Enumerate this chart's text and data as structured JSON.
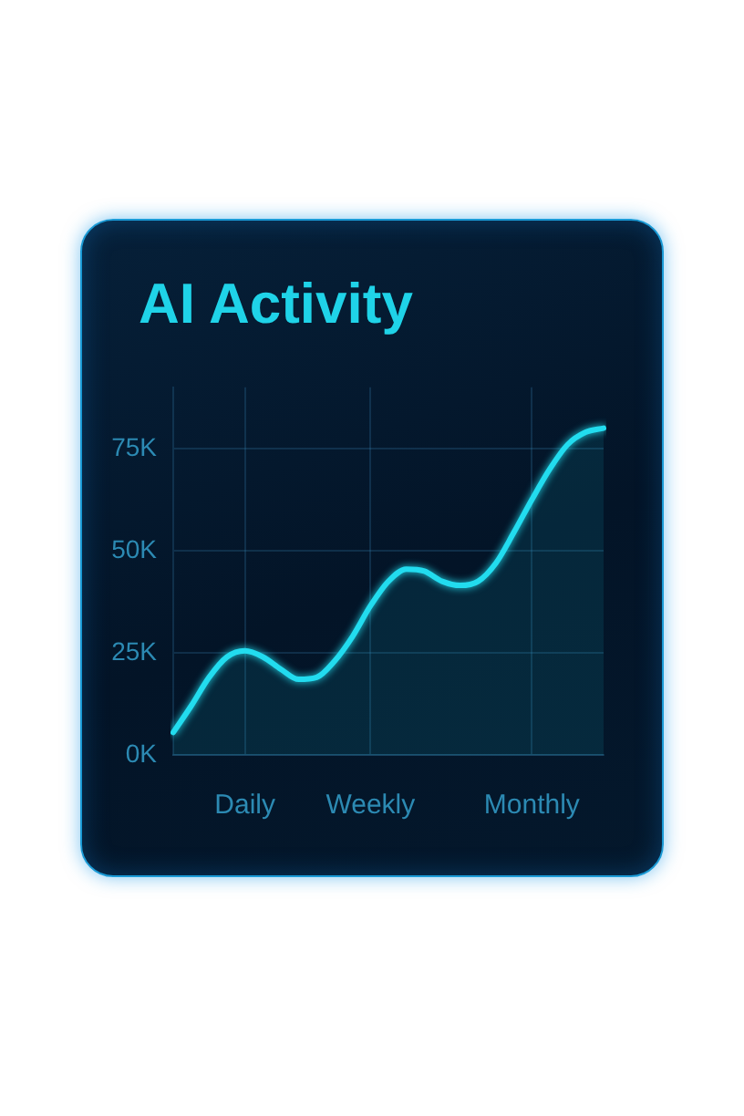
{
  "chart_data": {
    "type": "area",
    "title": "AI Activity",
    "categories": [
      null,
      null,
      null,
      null,
      "Daily",
      null,
      null,
      null,
      null,
      null,
      null,
      "Weekly",
      null,
      null,
      null,
      null,
      null,
      null,
      null,
      null,
      "Monthly",
      null,
      null,
      null,
      null
    ],
    "values": [
      5500,
      12000,
      19000,
      24000,
      25500,
      24000,
      21000,
      18500,
      19000,
      23000,
      29000,
      36500,
      42500,
      45500,
      45000,
      42500,
      41500,
      42500,
      47000,
      54500,
      62500,
      70000,
      76000,
      79000,
      80000
    ],
    "color": "#22dcef",
    "ylim": [
      0,
      90000
    ],
    "yticks": [
      {
        "value": 0,
        "label": "0K"
      },
      {
        "value": 25000,
        "label": "25K"
      },
      {
        "value": 50000,
        "label": "50K"
      },
      {
        "value": 75000,
        "label": "75K"
      }
    ],
    "grid": true
  }
}
